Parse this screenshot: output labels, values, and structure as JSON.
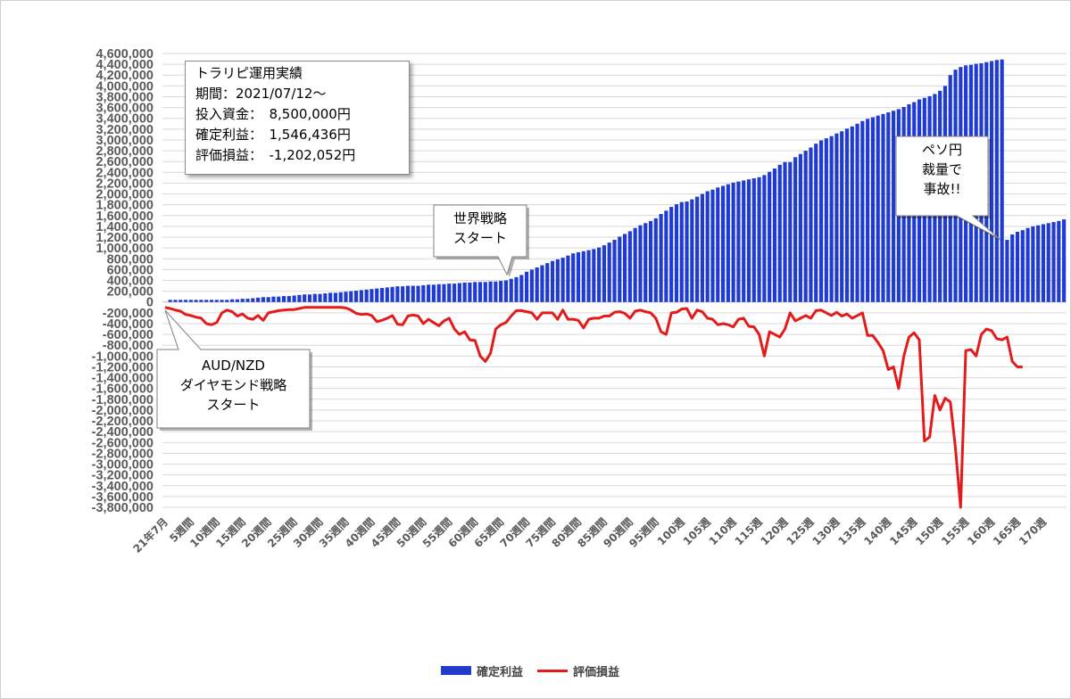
{
  "chart_data": {
    "type": "bar+line",
    "legend": {
      "position": "bottom",
      "items": [
        "確定利益",
        "評価損益"
      ]
    },
    "colors": {
      "bars": "#1f3bd1",
      "line": "#e31b1b"
    },
    "ylim": [
      -3800000,
      4600000
    ],
    "yticks": [
      "4,600,000",
      "4,400,000",
      "4,200,000",
      "4,000,000",
      "3,800,000",
      "3,600,000",
      "3,400,000",
      "3,200,000",
      "3,000,000",
      "2,800,000",
      "2,600,000",
      "2,400,000",
      "2,200,000",
      "2,000,000",
      "1,800,000",
      "1,600,000",
      "1,400,000",
      "1,200,000",
      "1,000,000",
      "800,000",
      "600,000",
      "400,000",
      "200,000",
      "0",
      "-200,000",
      "-400,000",
      "-600,000",
      "-800,000",
      "-1,000,000",
      "-1,200,000",
      "-1,400,000",
      "-1,600,000",
      "-1,800,000",
      "-2,000,000",
      "-2,200,000",
      "-2,400,000",
      "-2,600,000",
      "-2,800,000",
      "-3,000,000",
      "-3,200,000",
      "-3,400,000",
      "-3,600,000",
      "-3,800,000"
    ],
    "grid": true,
    "xlabels": [
      {
        "i": 0,
        "label": "21年7月"
      },
      {
        "i": 5,
        "label": "5週間"
      },
      {
        "i": 10,
        "label": "10週間"
      },
      {
        "i": 15,
        "label": "15週間"
      },
      {
        "i": 20,
        "label": "20週間"
      },
      {
        "i": 25,
        "label": "25週間"
      },
      {
        "i": 30,
        "label": "30週間"
      },
      {
        "i": 35,
        "label": "35週間"
      },
      {
        "i": 40,
        "label": "40週間"
      },
      {
        "i": 45,
        "label": "45週間"
      },
      {
        "i": 50,
        "label": "50週間"
      },
      {
        "i": 55,
        "label": "55週間"
      },
      {
        "i": 60,
        "label": "60週間"
      },
      {
        "i": 65,
        "label": "65週間"
      },
      {
        "i": 70,
        "label": "70週間"
      },
      {
        "i": 75,
        "label": "75週間"
      },
      {
        "i": 80,
        "label": "80週間"
      },
      {
        "i": 85,
        "label": "85週間"
      },
      {
        "i": 90,
        "label": "90週間"
      },
      {
        "i": 95,
        "label": "95週間"
      },
      {
        "i": 100,
        "label": "100週"
      },
      {
        "i": 105,
        "label": "105週"
      },
      {
        "i": 110,
        "label": "110週"
      },
      {
        "i": 115,
        "label": "115週"
      },
      {
        "i": 120,
        "label": "120週"
      },
      {
        "i": 125,
        "label": "125週"
      },
      {
        "i": 130,
        "label": "130週"
      },
      {
        "i": 135,
        "label": "135週"
      },
      {
        "i": 140,
        "label": "140週"
      },
      {
        "i": 145,
        "label": "145週"
      },
      {
        "i": 150,
        "label": "150週"
      },
      {
        "i": 155,
        "label": "155週"
      },
      {
        "i": 160,
        "label": "160週"
      },
      {
        "i": 165,
        "label": "165週"
      },
      {
        "i": 170,
        "label": "170週"
      }
    ],
    "series": [
      {
        "name": "確定利益",
        "type": "bar",
        "values": [
          0,
          40000,
          40000,
          40000,
          40000,
          40000,
          40000,
          40000,
          40000,
          40000,
          40000,
          40000,
          40000,
          50000,
          50000,
          60000,
          60000,
          70000,
          80000,
          90000,
          90000,
          100000,
          100000,
          110000,
          110000,
          120000,
          130000,
          140000,
          140000,
          150000,
          150000,
          160000,
          170000,
          170000,
          180000,
          190000,
          200000,
          210000,
          220000,
          230000,
          240000,
          250000,
          260000,
          270000,
          280000,
          290000,
          290000,
          300000,
          300000,
          300000,
          310000,
          320000,
          320000,
          330000,
          330000,
          340000,
          340000,
          350000,
          360000,
          360000,
          370000,
          370000,
          370000,
          380000,
          380000,
          390000,
          400000,
          430000,
          460000,
          500000,
          560000,
          600000,
          640000,
          680000,
          720000,
          760000,
          790000,
          820000,
          860000,
          900000,
          920000,
          940000,
          960000,
          980000,
          1010000,
          1050000,
          1100000,
          1150000,
          1210000,
          1260000,
          1310000,
          1370000,
          1420000,
          1460000,
          1500000,
          1550000,
          1630000,
          1690000,
          1760000,
          1810000,
          1850000,
          1860000,
          1900000,
          1950000,
          2000000,
          2050000,
          2080000,
          2120000,
          2150000,
          2180000,
          2210000,
          2230000,
          2250000,
          2270000,
          2290000,
          2310000,
          2350000,
          2410000,
          2470000,
          2540000,
          2590000,
          2590000,
          2680000,
          2740000,
          2800000,
          2860000,
          2930000,
          2990000,
          3030000,
          3070000,
          3120000,
          3160000,
          3210000,
          3250000,
          3300000,
          3350000,
          3390000,
          3420000,
          3450000,
          3480000,
          3510000,
          3540000,
          3570000,
          3610000,
          3660000,
          3700000,
          3750000,
          3780000,
          3810000,
          3850000,
          3910000,
          4000000,
          4200000,
          4300000,
          4350000,
          4380000,
          4390000,
          4410000,
          4420000,
          4440000,
          4460000,
          4480000,
          4490000,
          1150000,
          1250000,
          1300000,
          1330000,
          1370000,
          1400000,
          1420000,
          1440000,
          1460000,
          1480000,
          1500000,
          1530000
        ],
        "last_value": 1546436
      },
      {
        "name": "評価損益",
        "type": "line",
        "values": [
          -100000,
          -120000,
          -150000,
          -170000,
          -230000,
          -250000,
          -280000,
          -300000,
          -400000,
          -420000,
          -380000,
          -200000,
          -150000,
          -180000,
          -260000,
          -220000,
          -300000,
          -320000,
          -250000,
          -340000,
          -200000,
          -180000,
          -160000,
          -150000,
          -140000,
          -140000,
          -120000,
          -100000,
          -100000,
          -100000,
          -100000,
          -100000,
          -100000,
          -100000,
          -100000,
          -110000,
          -150000,
          -210000,
          -230000,
          -220000,
          -250000,
          -360000,
          -340000,
          -300000,
          -250000,
          -410000,
          -420000,
          -260000,
          -240000,
          -260000,
          -400000,
          -320000,
          -380000,
          -440000,
          -350000,
          -300000,
          -500000,
          -600000,
          -550000,
          -700000,
          -710000,
          -1000000,
          -1100000,
          -950000,
          -500000,
          -420000,
          -380000,
          -260000,
          -160000,
          -160000,
          -180000,
          -200000,
          -320000,
          -200000,
          -200000,
          -200000,
          -320000,
          -150000,
          -320000,
          -320000,
          -340000,
          -480000,
          -320000,
          -300000,
          -300000,
          -260000,
          -260000,
          -190000,
          -180000,
          -210000,
          -300000,
          -170000,
          -150000,
          -180000,
          -200000,
          -300000,
          -550000,
          -600000,
          -200000,
          -190000,
          -130000,
          -120000,
          -300000,
          -150000,
          -180000,
          -300000,
          -320000,
          -420000,
          -400000,
          -420000,
          -460000,
          -320000,
          -300000,
          -450000,
          -460000,
          -600000,
          -1000000,
          -550000,
          -600000,
          -650000,
          -500000,
          -200000,
          -350000,
          -300000,
          -250000,
          -300000,
          -160000,
          -150000,
          -200000,
          -250000,
          -190000,
          -260000,
          -220000,
          -300000,
          -250000,
          -200000,
          -620000,
          -620000,
          -750000,
          -900000,
          -1250000,
          -1200000,
          -1600000,
          -1000000,
          -650000,
          -570000,
          -700000,
          -2570000,
          -2500000,
          -1730000,
          -2000000,
          -1780000,
          -1850000,
          -2700000,
          -3800000,
          -900000,
          -880000,
          -1000000,
          -600000,
          -500000,
          -530000,
          -680000,
          -700000,
          -650000,
          -1100000,
          -1200000,
          -1202052
        ],
        "last_value": -1202052
      }
    ]
  },
  "summary_box": {
    "title": "トラリピ運用実績",
    "period": "期間：2021/07/12～",
    "investment": "投入資金：　8,500,000円",
    "realized": "確定利益：　1,546,436円",
    "unrealized": "評価損益：　-1,202,052円"
  },
  "callouts": {
    "world_strategy": [
      "世界戦略",
      "スタート"
    ],
    "peso_accident": [
      "ペソ円",
      "裁量で",
      "事故!!"
    ],
    "audnzd": [
      "AUD/NZD",
      "ダイヤモンド戦略",
      "スタート"
    ]
  }
}
